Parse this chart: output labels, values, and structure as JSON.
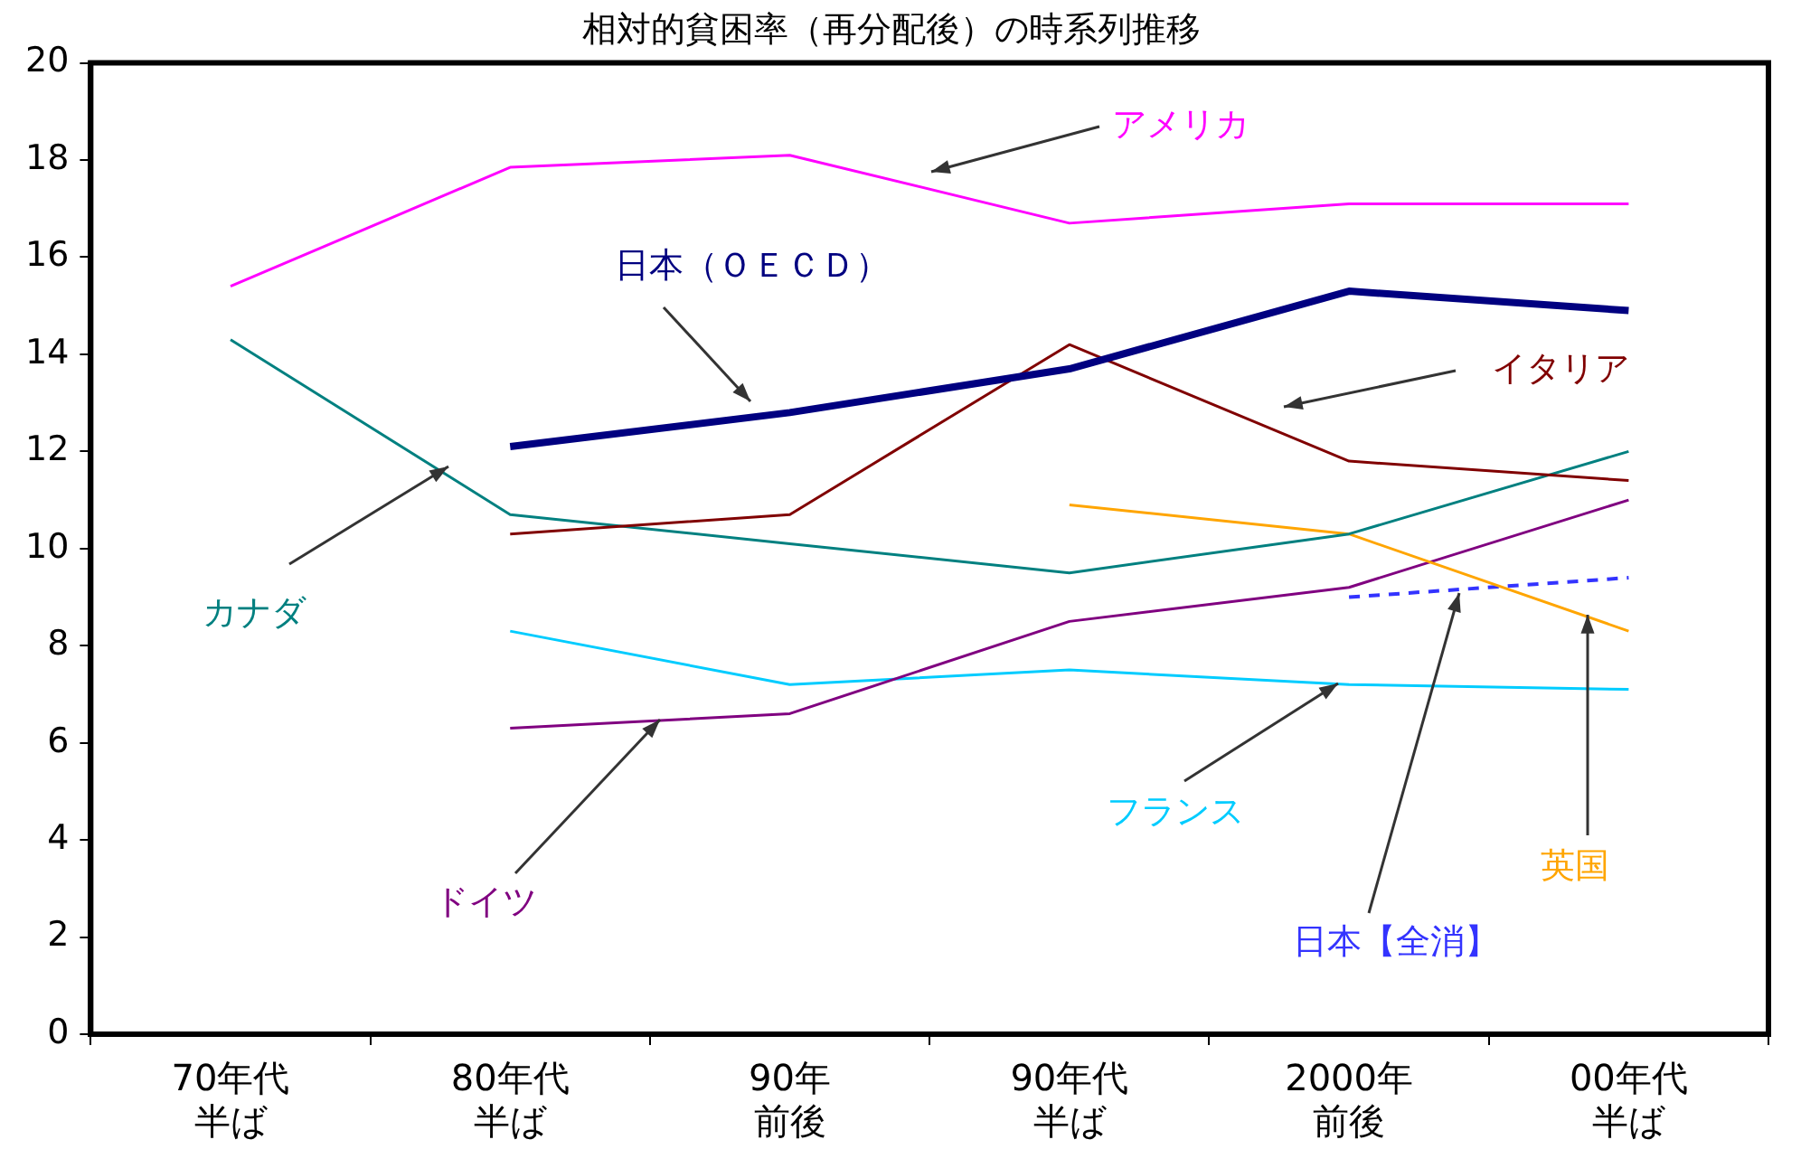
{
  "chart_data": {
    "type": "line",
    "title": "相対的貧困率（再分配後）の時系列推移",
    "categories": [
      "70年代半ば",
      "80年代半ば",
      "90年前後",
      "90年代半ば",
      "2000年前後",
      "00年代半ば"
    ],
    "series": [
      {
        "name": "アメリカ",
        "color": "#ff00ff",
        "values": [
          15.4,
          17.85,
          18.1,
          16.7,
          17.1,
          17.1
        ]
      },
      {
        "name": "日本（ＯＥＣＤ）",
        "color": "#000080",
        "values": [
          null,
          12.1,
          12.8,
          13.7,
          15.3,
          14.9
        ]
      },
      {
        "name": "イタリア",
        "color": "#800000",
        "values": [
          null,
          10.3,
          10.7,
          14.2,
          11.8,
          11.4
        ]
      },
      {
        "name": "カナダ",
        "color": "#008080",
        "values": [
          14.3,
          10.7,
          10.1,
          9.5,
          10.3,
          12.0
        ]
      },
      {
        "name": "英国",
        "color": "#ffa500",
        "values": [
          null,
          null,
          null,
          10.9,
          10.3,
          8.3
        ]
      },
      {
        "name": "ドイツ",
        "color": "#800080",
        "values": [
          null,
          6.3,
          6.6,
          8.5,
          9.2,
          11.0
        ]
      },
      {
        "name": "フランス",
        "color": "#00ccff",
        "values": [
          null,
          8.3,
          7.2,
          7.5,
          7.2,
          7.1
        ]
      },
      {
        "name": "日本【全消】",
        "color": "#3333ff",
        "line_style": "dashed",
        "values": [
          null,
          null,
          null,
          null,
          9.0,
          9.4
        ]
      }
    ],
    "ylim": [
      0,
      20
    ],
    "yticks": [
      0,
      2,
      4,
      6,
      8,
      10,
      12,
      14,
      16,
      18,
      20
    ],
    "grid": false,
    "legend": false,
    "marker": "none"
  }
}
